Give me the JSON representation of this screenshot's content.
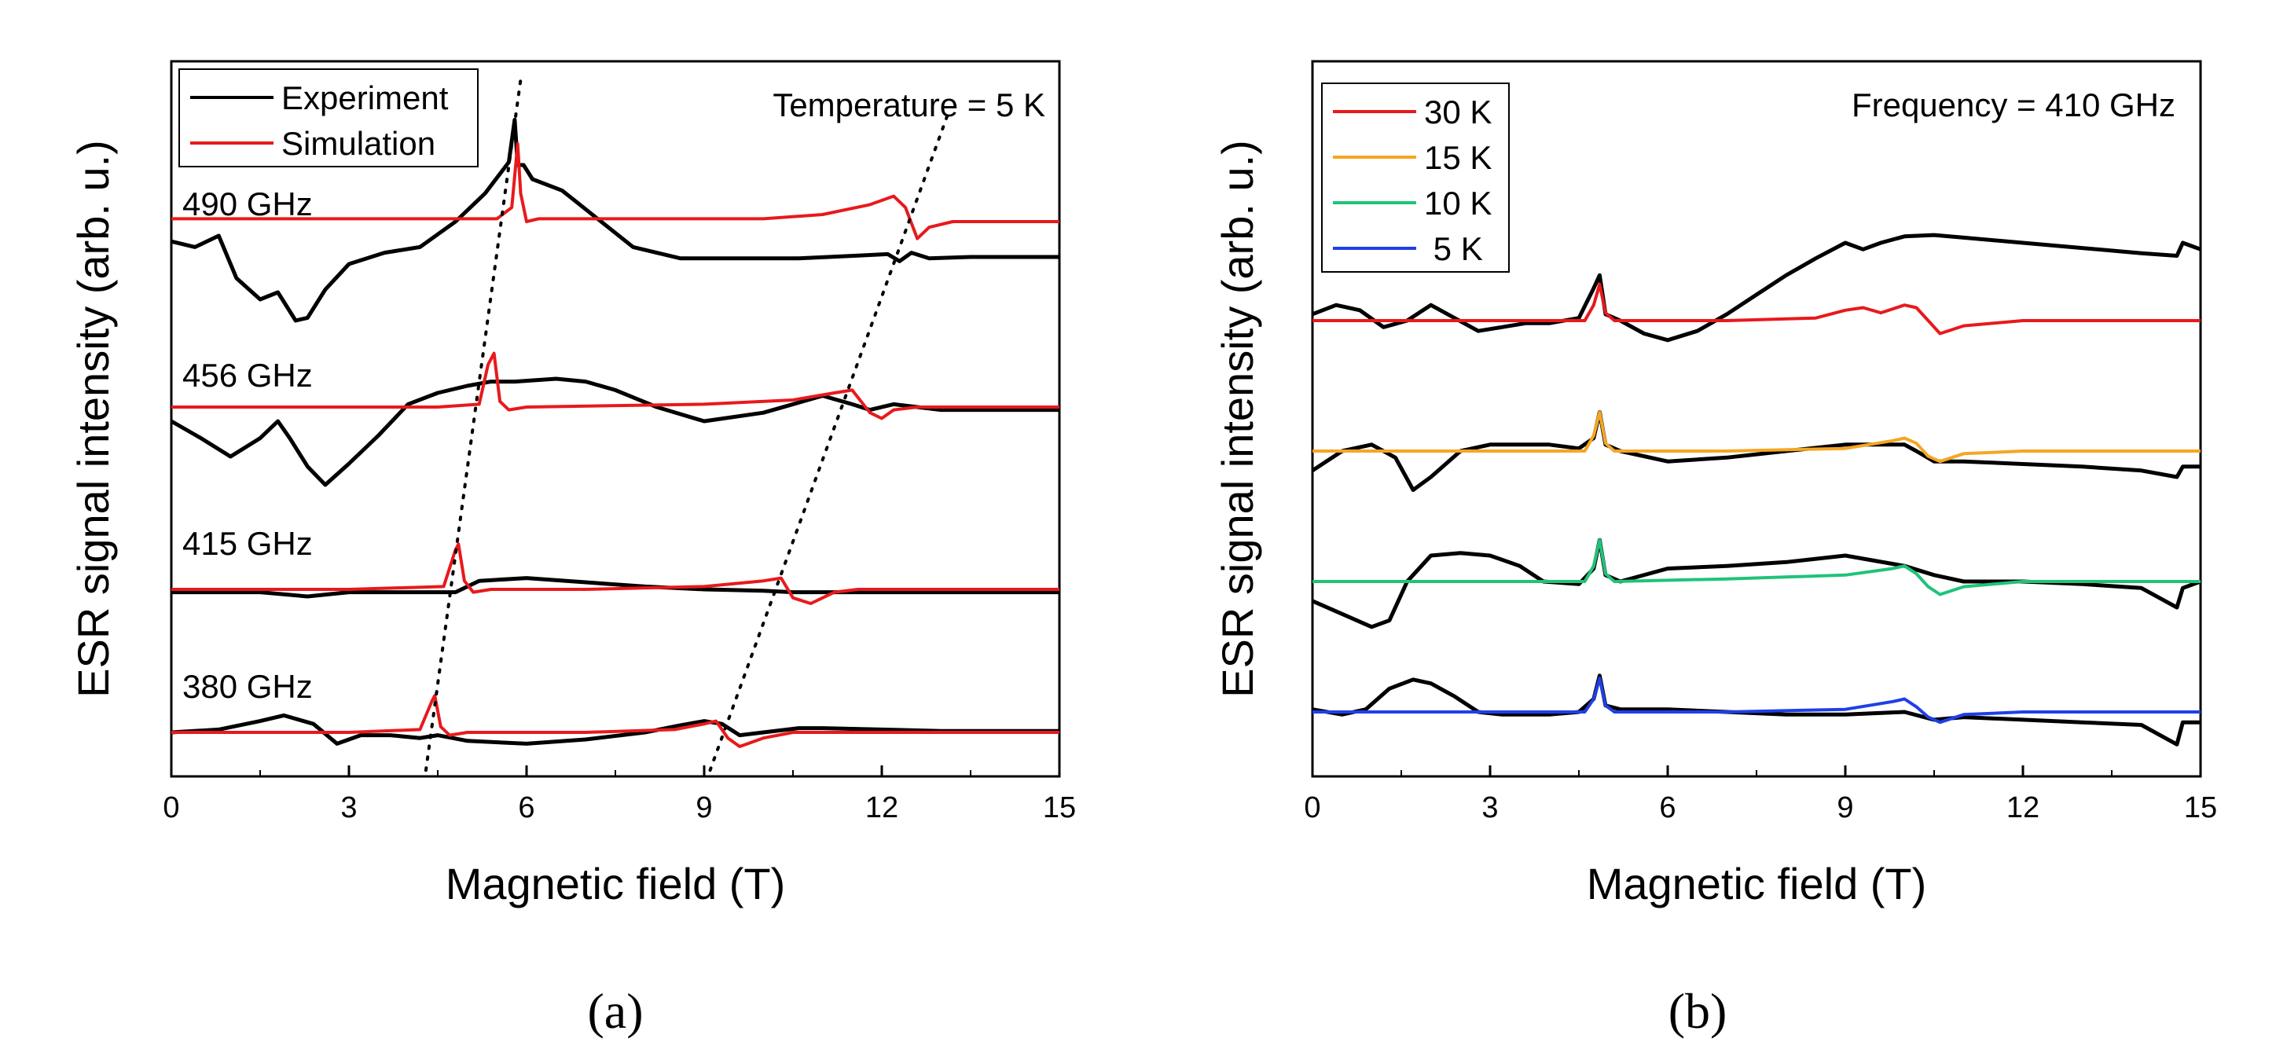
{
  "chart_data": [
    {
      "panel": "(a)",
      "type": "line",
      "xlabel": "Magnetic field (T)",
      "ylabel": "ESR signal intensity (arb. u.)",
      "xlim": [
        0,
        15
      ],
      "xticks": [
        0,
        3,
        6,
        9,
        12,
        15
      ],
      "annotation": "Temperature = 5 K",
      "legend": {
        "position": "top-left",
        "entries": [
          {
            "label": "Experiment",
            "color": "#000000"
          },
          {
            "label": "Simulation",
            "color": "#e8191c"
          }
        ]
      },
      "guide_lines": [
        {
          "style": "dotted",
          "points": [
            [
              4.3,
              -1.3
            ],
            [
              5.9,
              4.3
            ]
          ]
        },
        {
          "style": "dotted",
          "points": [
            [
              9.1,
              -1.3
            ],
            [
              13.1,
              4.0
            ]
          ]
        }
      ],
      "traces": [
        {
          "label": "490 GHz",
          "offset": 3,
          "experiment": {
            "x": [
              0,
              0.4,
              0.8,
              1.1,
              1.5,
              1.8,
              2.1,
              2.3,
              2.6,
              3.0,
              3.6,
              4.2,
              4.8,
              5.3,
              5.7,
              5.8,
              5.85,
              5.95,
              6.1,
              6.6,
              7.2,
              7.8,
              8.6,
              9.6,
              10.6,
              11.6,
              12.1,
              12.3,
              12.5,
              12.8,
              13.5,
              14.2,
              15
            ],
            "y": [
              0.06,
              0.02,
              0.1,
              -0.2,
              -0.35,
              -0.3,
              -0.5,
              -0.48,
              -0.28,
              -0.1,
              -0.02,
              0.02,
              0.2,
              0.4,
              0.62,
              0.92,
              0.6,
              0.6,
              0.5,
              0.42,
              0.22,
              0.02,
              -0.06,
              -0.06,
              -0.06,
              -0.04,
              -0.03,
              -0.08,
              -0.02,
              -0.06,
              -0.05,
              -0.05,
              -0.05
            ]
          },
          "simulation": {
            "x": [
              0,
              3,
              5.5,
              5.75,
              5.85,
              5.9,
              6.0,
              6.2,
              8,
              10,
              11,
              11.8,
              12.2,
              12.4,
              12.6,
              12.8,
              13.2,
              15
            ],
            "y": [
              0.22,
              0.22,
              0.22,
              0.3,
              0.75,
              0.4,
              0.2,
              0.22,
              0.22,
              0.22,
              0.25,
              0.32,
              0.38,
              0.3,
              0.08,
              0.16,
              0.2,
              0.2
            ]
          }
        },
        {
          "label": "456 GHz",
          "offset": 2,
          "experiment": {
            "x": [
              0,
              0.5,
              1.0,
              1.5,
              1.8,
              2.0,
              2.3,
              2.6,
              3.0,
              3.5,
              4.0,
              4.5,
              5.0,
              5.4,
              5.8,
              6.5,
              7.0,
              7.5,
              8.2,
              9.0,
              10.0,
              11.0,
              11.5,
              11.8,
              12.2,
              12.6,
              13,
              14,
              15
            ],
            "y": [
              0.0,
              -0.12,
              -0.25,
              -0.12,
              0.0,
              -0.12,
              -0.32,
              -0.45,
              -0.3,
              -0.1,
              0.12,
              0.2,
              0.25,
              0.28,
              0.28,
              0.3,
              0.28,
              0.22,
              0.1,
              0.0,
              0.06,
              0.18,
              0.12,
              0.08,
              0.12,
              0.1,
              0.08,
              0.08,
              0.08
            ]
          },
          "simulation": {
            "x": [
              0,
              4.5,
              5.2,
              5.35,
              5.45,
              5.55,
              5.7,
              6.0,
              9,
              10.5,
              11.2,
              11.5,
              11.8,
              12.0,
              12.2,
              12.6,
              13,
              15
            ],
            "y": [
              0.1,
              0.1,
              0.12,
              0.4,
              0.48,
              0.14,
              0.08,
              0.1,
              0.12,
              0.15,
              0.2,
              0.22,
              0.06,
              0.02,
              0.08,
              0.1,
              0.1,
              0.1
            ]
          }
        },
        {
          "label": "415 GHz",
          "offset": 1,
          "experiment": {
            "x": [
              0,
              0.8,
              1.5,
              2.3,
              3.0,
              3.5,
              4.2,
              4.8,
              5.2,
              6,
              7,
              8,
              9,
              10,
              10.5,
              11,
              11.5,
              12,
              13,
              14,
              15
            ],
            "y": [
              -0.02,
              -0.02,
              -0.02,
              -0.05,
              -0.02,
              -0.02,
              -0.02,
              -0.02,
              0.06,
              0.08,
              0.05,
              0.02,
              0.0,
              -0.01,
              -0.02,
              -0.02,
              -0.02,
              -0.02,
              -0.02,
              -0.02,
              -0.02
            ]
          },
          "simulation": {
            "x": [
              0,
              3,
              4.6,
              4.8,
              4.85,
              4.95,
              5.1,
              5.4,
              7,
              9,
              10,
              10.3,
              10.5,
              10.8,
              11.2,
              11.6,
              12.2,
              15
            ],
            "y": [
              0.0,
              0.0,
              0.02,
              0.28,
              0.32,
              0.06,
              -0.02,
              0.0,
              0.0,
              0.02,
              0.06,
              0.08,
              -0.06,
              -0.1,
              -0.02,
              0.0,
              0.0,
              0.0
            ]
          }
        },
        {
          "label": "380 GHz",
          "offset": 0,
          "experiment": {
            "x": [
              0,
              0.8,
              1.5,
              1.9,
              2.4,
              2.8,
              3.2,
              3.7,
              4.2,
              4.5,
              5,
              6,
              7,
              8,
              8.6,
              9.0,
              9.3,
              9.6,
              10,
              10.6,
              11,
              12,
              13,
              14,
              15
            ],
            "y": [
              0.0,
              0.02,
              0.08,
              0.12,
              0.06,
              -0.08,
              -0.02,
              -0.02,
              -0.04,
              -0.02,
              -0.06,
              -0.08,
              -0.05,
              0.0,
              0.05,
              0.08,
              0.06,
              -0.02,
              0.0,
              0.03,
              0.03,
              0.02,
              0.01,
              0.01,
              0.01
            ]
          },
          "simulation": {
            "x": [
              0,
              3,
              4.2,
              4.4,
              4.45,
              4.55,
              4.7,
              5.0,
              7,
              8.5,
              9.0,
              9.2,
              9.4,
              9.6,
              10,
              10.5,
              11,
              15
            ],
            "y": [
              0.0,
              0.0,
              0.02,
              0.22,
              0.26,
              0.04,
              -0.02,
              0.0,
              0.0,
              0.02,
              0.06,
              0.08,
              -0.04,
              -0.1,
              -0.04,
              0.0,
              0.0,
              0.0
            ]
          }
        }
      ]
    },
    {
      "panel": "(b)",
      "type": "line",
      "xlabel": "Magnetic field (T)",
      "ylabel": "ESR signal intensity (arb. u.)",
      "xlim": [
        0,
        15
      ],
      "xticks": [
        0,
        3,
        6,
        9,
        12,
        15
      ],
      "annotation": "Frequency = 410 GHz",
      "legend": {
        "position": "top-left",
        "entries": [
          {
            "label": "30 K",
            "color": "#e8191c"
          },
          {
            "label": "15 K",
            "color": "#f5a623"
          },
          {
            "label": "10 K",
            "color": "#1fc37a"
          },
          {
            "label": " 5 K",
            "color": "#1f3fe6"
          }
        ]
      },
      "traces": [
        {
          "temperature": "30 K",
          "color": "#e8191c",
          "offset": 3,
          "experiment": {
            "x": [
              0,
              0.4,
              0.8,
              1.2,
              1.6,
              2.0,
              2.4,
              2.8,
              3.2,
              3.6,
              4.0,
              4.5,
              4.75,
              4.85,
              4.95,
              5.2,
              5.6,
              6.0,
              6.5,
              7.0,
              7.5,
              8.0,
              8.5,
              9.0,
              9.3,
              9.6,
              10,
              10.5,
              11,
              12,
              13,
              14,
              14.6,
              14.7,
              15
            ],
            "y": [
              0.05,
              0.12,
              0.08,
              -0.05,
              0.0,
              0.12,
              0.02,
              -0.08,
              -0.05,
              -0.02,
              -0.02,
              0.02,
              0.25,
              0.35,
              0.05,
              0.0,
              -0.1,
              -0.15,
              -0.08,
              0.05,
              0.2,
              0.35,
              0.48,
              0.6,
              0.55,
              0.6,
              0.65,
              0.66,
              0.64,
              0.6,
              0.56,
              0.52,
              0.5,
              0.6,
              0.55
            ]
          },
          "simulation": {
            "x": [
              0,
              4.6,
              4.75,
              4.85,
              4.95,
              5.1,
              7,
              8.5,
              9,
              9.3,
              9.6,
              10,
              10.2,
              10.4,
              10.6,
              11,
              12,
              15
            ],
            "y": [
              0.0,
              0.0,
              0.12,
              0.28,
              0.06,
              0.0,
              0.0,
              0.02,
              0.08,
              0.1,
              0.06,
              0.12,
              0.1,
              0.0,
              -0.1,
              -0.04,
              0.0,
              0.0
            ]
          }
        },
        {
          "temperature": "15 K",
          "color": "#f5a623",
          "offset": 2,
          "experiment": {
            "x": [
              0,
              0.5,
              1.0,
              1.4,
              1.7,
              2.0,
              2.5,
              3.0,
              3.5,
              4.0,
              4.5,
              4.75,
              4.85,
              4.95,
              5.2,
              6,
              7,
              8,
              9,
              10,
              10.2,
              10.5,
              11,
              12,
              13,
              14,
              14.6,
              14.7,
              15
            ],
            "y": [
              -0.15,
              0.0,
              0.05,
              -0.05,
              -0.3,
              -0.2,
              0.0,
              0.05,
              0.05,
              0.05,
              0.02,
              0.1,
              0.3,
              0.05,
              0.0,
              -0.08,
              -0.05,
              0.0,
              0.05,
              0.05,
              0.0,
              -0.08,
              -0.08,
              -0.1,
              -0.12,
              -0.15,
              -0.2,
              -0.12,
              -0.12
            ]
          },
          "simulation": {
            "x": [
              0,
              4.6,
              4.75,
              4.85,
              4.95,
              5.1,
              7,
              9,
              9.8,
              10.0,
              10.2,
              10.4,
              10.6,
              11,
              12,
              15
            ],
            "y": [
              0.0,
              0.0,
              0.12,
              0.3,
              0.06,
              0.0,
              0.0,
              0.02,
              0.08,
              0.1,
              0.06,
              -0.04,
              -0.08,
              -0.02,
              0.0,
              0.0
            ]
          }
        },
        {
          "temperature": "10 K",
          "color": "#1fc37a",
          "offset": 1,
          "experiment": {
            "x": [
              0,
              0.5,
              1.0,
              1.3,
              1.6,
              2.0,
              2.5,
              3.0,
              3.5,
              3.9,
              4.5,
              4.75,
              4.85,
              4.95,
              5.2,
              6,
              7,
              8,
              9,
              9.5,
              10,
              10.5,
              11,
              12,
              13,
              14,
              14.6,
              14.7,
              15
            ],
            "y": [
              -0.15,
              -0.25,
              -0.35,
              -0.3,
              0.0,
              0.2,
              0.22,
              0.2,
              0.12,
              0.0,
              -0.02,
              0.1,
              0.32,
              0.05,
              0.0,
              0.1,
              0.12,
              0.15,
              0.2,
              0.16,
              0.12,
              0.05,
              0.0,
              0.0,
              -0.02,
              -0.05,
              -0.2,
              -0.05,
              0.0
            ]
          },
          "simulation": {
            "x": [
              0,
              4.6,
              4.75,
              4.85,
              4.95,
              5.1,
              7,
              9,
              9.8,
              10.0,
              10.2,
              10.4,
              10.6,
              11,
              12,
              15
            ],
            "y": [
              0.0,
              0.0,
              0.12,
              0.32,
              0.06,
              0.0,
              0.02,
              0.05,
              0.1,
              0.12,
              0.06,
              -0.04,
              -0.1,
              -0.04,
              0.0,
              0.0
            ]
          }
        },
        {
          "temperature": "5 K",
          "color": "#1f3fe6",
          "offset": 0,
          "experiment": {
            "x": [
              0,
              0.5,
              0.9,
              1.3,
              1.7,
              2.0,
              2.4,
              2.8,
              3.2,
              4.0,
              4.5,
              4.75,
              4.85,
              4.95,
              5.2,
              6,
              7,
              8,
              9,
              10,
              10.5,
              11,
              12,
              13,
              14,
              14.6,
              14.7,
              15
            ],
            "y": [
              0.02,
              -0.02,
              0.02,
              0.18,
              0.25,
              0.22,
              0.12,
              0.0,
              -0.02,
              -0.02,
              0.0,
              0.1,
              0.28,
              0.05,
              0.02,
              0.02,
              0.0,
              -0.02,
              -0.02,
              0.0,
              -0.06,
              -0.04,
              -0.06,
              -0.08,
              -0.1,
              -0.25,
              -0.08,
              -0.08
            ]
          },
          "simulation": {
            "x": [
              0,
              4.6,
              4.75,
              4.85,
              4.95,
              5.1,
              7,
              9,
              9.8,
              10.0,
              10.2,
              10.4,
              10.6,
              11,
              12,
              15
            ],
            "y": [
              0.0,
              0.0,
              0.1,
              0.26,
              0.05,
              0.0,
              0.0,
              0.02,
              0.08,
              0.1,
              0.04,
              -0.04,
              -0.08,
              -0.02,
              0.0,
              0.0
            ]
          }
        }
      ]
    }
  ]
}
